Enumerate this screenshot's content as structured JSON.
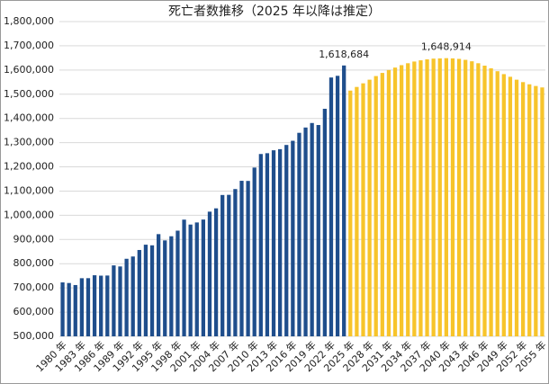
{
  "chart_data": {
    "type": "bar",
    "title": "死亡者数推移（2025 年以降は推定）",
    "categories": [
      "1980 年",
      null,
      null,
      "1983 年",
      null,
      null,
      "1986 年",
      null,
      null,
      "1989 年",
      null,
      null,
      "1992 年",
      null,
      null,
      "1995 年",
      null,
      null,
      "1998 年",
      null,
      null,
      "2001 年",
      null,
      null,
      "2004 年",
      null,
      null,
      "2007 年",
      null,
      null,
      "2010 年",
      null,
      null,
      "2013 年",
      null,
      null,
      "2016 年",
      null,
      null,
      "2019 年",
      null,
      null,
      "2022 年",
      null,
      null,
      "2025 年",
      null,
      null,
      "2028 年",
      null,
      null,
      "2031 年",
      null,
      null,
      "2034 年",
      null,
      null,
      "2037 年",
      null,
      null,
      "2040 年",
      null,
      null,
      "2043 年",
      null,
      null,
      "2046 年",
      null,
      null,
      "2049 年",
      null,
      null,
      "2052 年",
      null,
      null,
      "2055 年"
    ],
    "series": [
      {
        "color": "#1f4e8c",
        "values": [
          722801,
          720262,
          711883,
          740038,
          740247,
          752283,
          750620,
          751172,
          793014,
          788594,
          820305,
          829797,
          856643,
          878532,
          875933,
          922139,
          896211,
          913402,
          936484,
          982031,
          961653,
          970331,
          982379,
          1014951,
          1028602,
          1083796,
          1084451,
          1108334,
          1142407,
          1141865,
          1197014,
          1253066,
          1256359,
          1268436,
          1273004,
          1290444,
          1307748,
          1340567,
          1362470,
          1381093,
          1372755,
          1439856,
          1569050,
          1576016,
          1618684,
          null,
          null,
          null,
          null,
          null,
          null,
          null,
          null,
          null,
          null,
          null,
          null,
          null,
          null,
          null,
          null,
          null,
          null,
          null,
          null,
          null,
          null,
          null,
          null,
          null,
          null,
          null,
          null,
          null,
          null,
          null
        ],
        "value_labels": [
          null,
          null,
          null,
          null,
          null,
          null,
          null,
          null,
          null,
          null,
          null,
          null,
          null,
          null,
          null,
          null,
          null,
          null,
          null,
          null,
          null,
          null,
          null,
          null,
          null,
          null,
          null,
          null,
          null,
          null,
          null,
          null,
          null,
          null,
          null,
          null,
          null,
          null,
          null,
          null,
          null,
          null,
          null,
          null,
          "1,618,684",
          null,
          null,
          null,
          null,
          null,
          null,
          null,
          null,
          null,
          null,
          null,
          null,
          null,
          null,
          null,
          null,
          null,
          null,
          null,
          null,
          null,
          null,
          null,
          null,
          null,
          null,
          null,
          null,
          null,
          null,
          null
        ]
      },
      {
        "color": "#f7c42b",
        "values": [
          null,
          null,
          null,
          null,
          null,
          null,
          null,
          null,
          null,
          null,
          null,
          null,
          null,
          null,
          null,
          null,
          null,
          null,
          null,
          null,
          null,
          null,
          null,
          null,
          null,
          null,
          null,
          null,
          null,
          null,
          null,
          null,
          null,
          null,
          null,
          null,
          null,
          null,
          null,
          null,
          null,
          null,
          null,
          null,
          null,
          1515000,
          1530000,
          1545000,
          1560000,
          1575000,
          1588000,
          1600000,
          1610000,
          1620000,
          1628000,
          1635000,
          1640000,
          1644000,
          1647000,
          1648000,
          1648914,
          1648000,
          1646000,
          1642000,
          1636000,
          1628000,
          1618000,
          1607000,
          1595000,
          1583000,
          1572000,
          1560000,
          1550000,
          1541000,
          1534000,
          1528000
        ],
        "value_labels": [
          null,
          null,
          null,
          null,
          null,
          null,
          null,
          null,
          null,
          null,
          null,
          null,
          null,
          null,
          null,
          null,
          null,
          null,
          null,
          null,
          null,
          null,
          null,
          null,
          null,
          null,
          null,
          null,
          null,
          null,
          null,
          null,
          null,
          null,
          null,
          null,
          null,
          null,
          null,
          null,
          null,
          null,
          null,
          null,
          null,
          null,
          null,
          null,
          null,
          null,
          null,
          null,
          null,
          null,
          null,
          null,
          null,
          null,
          null,
          null,
          "1,648,914",
          null,
          null,
          null,
          null,
          null,
          null,
          null,
          null,
          null,
          null,
          null,
          null,
          null,
          null,
          null
        ]
      }
    ],
    "ylim": [
      500000,
      1800000
    ],
    "yticks": [
      {
        "value": 500000,
        "label": "500,000"
      },
      {
        "value": 600000,
        "label": "600,000"
      },
      {
        "value": 700000,
        "label": "700,000"
      },
      {
        "value": 800000,
        "label": "800,000"
      },
      {
        "value": 900000,
        "label": "900,000"
      },
      {
        "value": 1000000,
        "label": "1,000,000"
      },
      {
        "value": 1100000,
        "label": "1,100,000"
      },
      {
        "value": 1200000,
        "label": "1,200,000"
      },
      {
        "value": 1300000,
        "label": "1,300,000"
      },
      {
        "value": 1400000,
        "label": "1,400,000"
      },
      {
        "value": 1500000,
        "label": "1,500,000"
      },
      {
        "value": 1600000,
        "label": "1,600,000"
      },
      {
        "value": 1700000,
        "label": "1,700,000"
      },
      {
        "value": 1800000,
        "label": "1,800,000"
      }
    ],
    "grid": true
  }
}
